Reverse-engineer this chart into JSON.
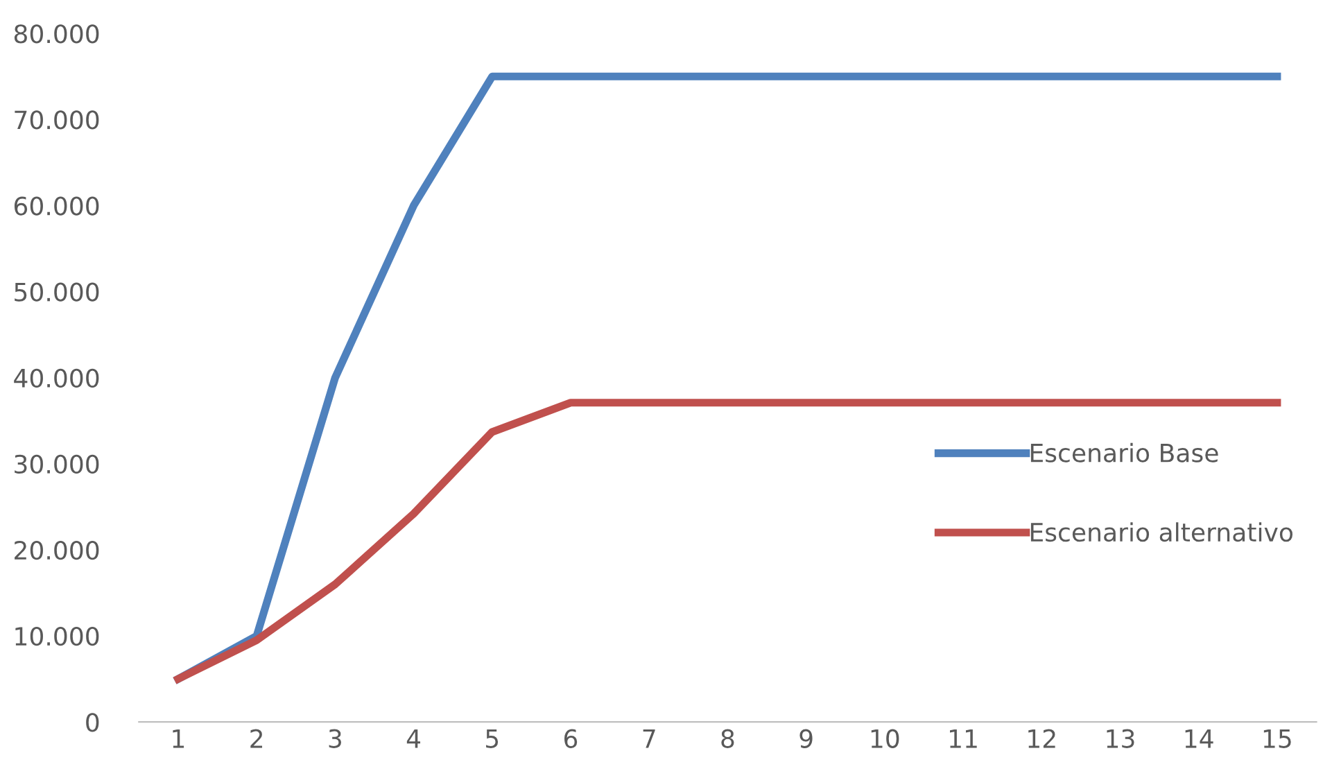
{
  "chart_data": {
    "type": "line",
    "categories": [
      "1",
      "2",
      "3",
      "4",
      "5",
      "6",
      "7",
      "8",
      "9",
      "10",
      "11",
      "12",
      "13",
      "14",
      "15"
    ],
    "series": [
      {
        "name": "Escenario Base",
        "color": "#4f81bd",
        "values": [
          5000,
          10000,
          40000,
          60000,
          75000,
          75000,
          75000,
          75000,
          75000,
          75000,
          75000,
          75000,
          75000,
          75000,
          75000
        ]
      },
      {
        "name": "Escenario alternativo",
        "color": "#c0504d",
        "values": [
          5000,
          9500,
          16000,
          24200,
          33700,
          37100,
          37100,
          37100,
          37100,
          37100,
          37100,
          37100,
          37100,
          37100,
          37100
        ]
      }
    ],
    "ylim": [
      0,
      80000
    ],
    "yticks": [
      {
        "value": 0,
        "label": "0"
      },
      {
        "value": 10000,
        "label": "10.000"
      },
      {
        "value": 20000,
        "label": "20.000"
      },
      {
        "value": 30000,
        "label": "30.000"
      },
      {
        "value": 40000,
        "label": "40.000"
      },
      {
        "value": 50000,
        "label": "50.000"
      },
      {
        "value": 60000,
        "label": "60.000"
      },
      {
        "value": 70000,
        "label": "70.000"
      },
      {
        "value": 80000,
        "label": "80.000"
      }
    ],
    "grid": false,
    "legend": "right",
    "marker": "none",
    "line_style": "solid"
  }
}
